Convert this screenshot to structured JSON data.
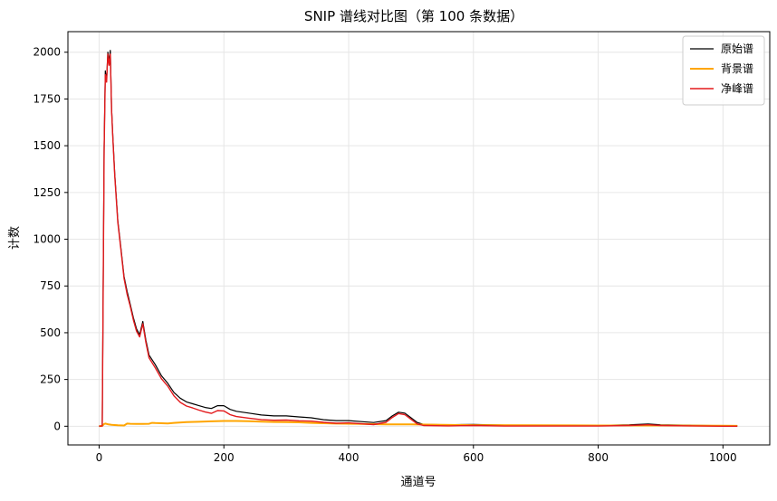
{
  "chart_data": {
    "type": "line",
    "title": "SNIP 谱线对比图（第 100 条数据）",
    "xlabel": "通道号",
    "ylabel": "计数",
    "xlim": [
      -50,
      1075
    ],
    "ylim": [
      -100,
      2110
    ],
    "xticks": [
      0,
      200,
      400,
      600,
      800,
      1000
    ],
    "yticks": [
      0,
      250,
      500,
      750,
      1000,
      1250,
      1500,
      1750,
      2000
    ],
    "grid": true,
    "legend_position": "top-right",
    "series": [
      {
        "name": "原始谱",
        "color": "#000000",
        "width": 1.2,
        "x": [
          0,
          5,
          8,
          10,
          12,
          14,
          16,
          18,
          20,
          22,
          25,
          30,
          35,
          40,
          45,
          50,
          55,
          60,
          65,
          70,
          75,
          80,
          90,
          100,
          110,
          120,
          130,
          140,
          150,
          160,
          170,
          180,
          190,
          200,
          210,
          220,
          240,
          260,
          280,
          300,
          320,
          340,
          360,
          380,
          400,
          420,
          440,
          460,
          470,
          480,
          490,
          500,
          510,
          520,
          560,
          600,
          650,
          700,
          750,
          800,
          850,
          880,
          900,
          950,
          1000,
          1023
        ],
        "y": [
          0,
          3,
          1500,
          1900,
          1850,
          2000,
          1950,
          2010,
          1700,
          1550,
          1350,
          1100,
          950,
          800,
          720,
          650,
          580,
          520,
          490,
          560,
          460,
          380,
          330,
          270,
          230,
          180,
          150,
          130,
          120,
          110,
          100,
          95,
          110,
          110,
          90,
          80,
          70,
          60,
          55,
          55,
          50,
          45,
          35,
          30,
          30,
          25,
          20,
          30,
          55,
          75,
          70,
          45,
          20,
          10,
          8,
          10,
          6,
          6,
          5,
          5,
          8,
          12,
          8,
          5,
          3,
          2
        ]
      },
      {
        "name": "背景谱",
        "color": "#FFA500",
        "width": 2,
        "x": [
          0,
          5,
          8,
          10,
          15,
          20,
          30,
          40,
          45,
          50,
          60,
          70,
          80,
          85,
          90,
          100,
          110,
          120,
          140,
          160,
          180,
          200,
          220,
          240,
          260,
          280,
          300,
          320,
          340,
          380,
          420,
          460,
          500,
          550,
          600,
          700,
          800,
          900,
          1000,
          1023
        ],
        "y": [
          0,
          2,
          12,
          14,
          10,
          8,
          5,
          4,
          14,
          13,
          12,
          12,
          13,
          18,
          17,
          16,
          15,
          18,
          22,
          24,
          26,
          28,
          28,
          27,
          25,
          23,
          22,
          21,
          18,
          14,
          12,
          10,
          10,
          8,
          6,
          5,
          4,
          4,
          3,
          2
        ]
      },
      {
        "name": "净峰谱",
        "color": "#E31A1C",
        "width": 1.4,
        "x": [
          0,
          5,
          8,
          10,
          12,
          14,
          16,
          18,
          20,
          22,
          25,
          30,
          35,
          40,
          45,
          50,
          55,
          60,
          65,
          70,
          75,
          80,
          90,
          100,
          110,
          120,
          130,
          140,
          150,
          160,
          170,
          180,
          190,
          200,
          210,
          220,
          240,
          260,
          280,
          300,
          320,
          340,
          360,
          380,
          400,
          420,
          440,
          460,
          470,
          480,
          490,
          500,
          510,
          520,
          560,
          600,
          650,
          700,
          750,
          800,
          850,
          880,
          900,
          950,
          1000,
          1023
        ],
        "y": [
          0,
          1,
          1480,
          1880,
          1840,
          1990,
          1930,
          1990,
          1690,
          1540,
          1340,
          1090,
          940,
          790,
          705,
          640,
          568,
          508,
          478,
          548,
          448,
          365,
          313,
          254,
          215,
          162,
          128,
          108,
          98,
          86,
          76,
          69,
          84,
          82,
          62,
          52,
          43,
          35,
          32,
          33,
          29,
          27,
          21,
          16,
          18,
          13,
          9,
          21,
          47,
          68,
          62,
          37,
          12,
          4,
          2,
          4,
          1,
          1,
          1,
          1,
          4,
          8,
          4,
          2,
          0,
          0
        ]
      }
    ]
  }
}
